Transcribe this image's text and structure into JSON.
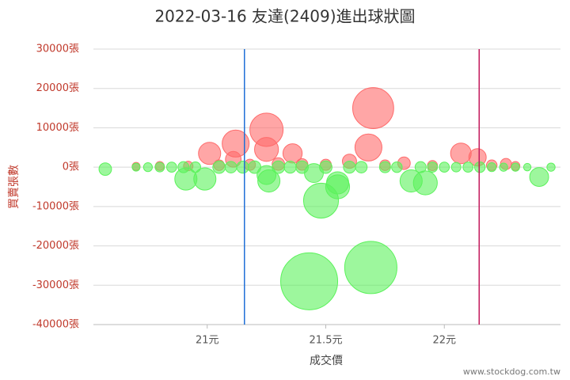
{
  "chart_data": {
    "type": "bubble",
    "title": "2022-03-16 友達(2409)進出球狀圖",
    "xlabel": "成交價",
    "ylabel": "買賣張數",
    "source": "www.stockdog.com.tw",
    "xlim": [
      20.52,
      22.49
    ],
    "ylim": [
      -40000,
      30000
    ],
    "xticks": [
      {
        "value": 21,
        "label": "21元"
      },
      {
        "value": 21.5,
        "label": "21.5元"
      },
      {
        "value": 22,
        "label": "22元"
      }
    ],
    "yticks": [
      {
        "value": -40000,
        "label": "-40000張"
      },
      {
        "value": -30000,
        "label": "-30000張"
      },
      {
        "value": -20000,
        "label": "-20000張"
      },
      {
        "value": -10000,
        "label": "-10000張"
      },
      {
        "value": 0,
        "label": "0張"
      },
      {
        "value": 10000,
        "label": "10000張"
      },
      {
        "value": 20000,
        "label": "20000張"
      },
      {
        "value": 30000,
        "label": "30000張"
      }
    ],
    "grid": true,
    "vlines": [
      {
        "value": 21.157,
        "color": "#1f6fd6"
      },
      {
        "value": 22.147,
        "color": "#c2185b"
      }
    ],
    "series": [
      {
        "color": "#ff6b6b",
        "x": [
          21.7,
          21.25,
          21.12,
          21.01,
          21.25,
          21.68,
          21.36,
          22.07,
          22.14,
          21.11,
          21.6,
          21.83,
          22.26,
          20.7,
          20.92,
          20.8,
          21.05,
          21.18,
          21.3,
          21.4,
          21.5,
          21.75,
          21.95,
          22.2,
          22.3
        ],
        "values": [
          15000,
          9500,
          6000,
          3500,
          4500,
          5000,
          3500,
          3500,
          2500,
          2000,
          1500,
          1000,
          800,
          200,
          300,
          300,
          500,
          600,
          800,
          700,
          600,
          500,
          400,
          500,
          300
        ],
        "sizes": [
          15000,
          9900,
          6500,
          4400,
          5100,
          6500,
          3300,
          3800,
          2700,
          2200,
          1800,
          1400,
          1100,
          560,
          800,
          700,
          1000,
          1100,
          1400,
          1200,
          1100,
          1000,
          900,
          1000,
          700
        ]
      },
      {
        "color": "#5cf25c",
        "x": [
          21.43,
          21.69,
          21.48,
          21.55,
          21.55,
          20.91,
          20.99,
          21.26,
          21.86,
          21.92,
          22.4,
          21.25,
          21.45,
          20.57,
          20.7,
          20.75,
          20.8,
          20.85,
          20.9,
          20.95,
          21.05,
          21.1,
          21.15,
          21.2,
          21.3,
          21.35,
          21.4,
          21.5,
          21.6,
          21.65,
          21.75,
          21.8,
          21.9,
          21.95,
          22.0,
          22.05,
          22.1,
          22.15,
          22.2,
          22.25,
          22.3,
          22.35,
          22.45
        ],
        "values": [
          -29000,
          -25500,
          -8500,
          -5000,
          -4000,
          -3000,
          -3000,
          -3500,
          -3500,
          -4000,
          -2500,
          -2000,
          -1500,
          -500,
          0,
          0,
          0,
          0,
          0,
          0,
          0,
          0,
          0,
          0,
          0,
          0,
          0,
          0,
          0,
          0,
          0,
          0,
          0,
          0,
          0,
          0,
          0,
          0,
          0,
          0,
          0,
          0,
          0
        ],
        "sizes": [
          29000,
          24400,
          10900,
          5100,
          4400,
          4400,
          4400,
          4400,
          4400,
          5100,
          3200,
          3200,
          3200,
          1400,
          560,
          700,
          800,
          900,
          1100,
          1000,
          1400,
          1200,
          1300,
          1400,
          1400,
          1300,
          1400,
          1400,
          1300,
          1200,
          1100,
          1000,
          1100,
          900,
          900,
          800,
          900,
          1000,
          700,
          600,
          600,
          500,
          600
        ]
      }
    ]
  }
}
